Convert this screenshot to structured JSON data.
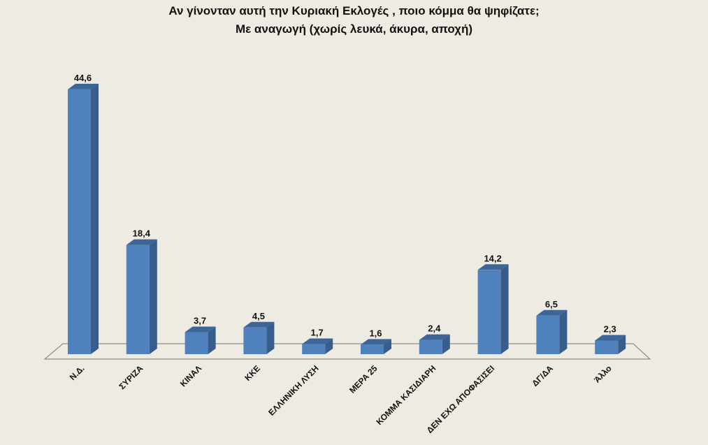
{
  "chart_data": {
    "type": "bar",
    "title": "Αν γίνονταν αυτή την Κυριακή Εκλογές , ποιο κόμμα θα ψηφίζατε;",
    "subtitle": "Με αναγωγή (χωρίς λευκά, άκυρα, αποχή)",
    "xlabel": "",
    "ylabel": "",
    "categories": [
      "Ν.Δ.",
      "ΣΥΡΙΖΑ",
      "ΚΙΝΑΛ",
      "ΚΚΕ",
      "ΕΛΛΗΝΙΚΗ ΛΥΣΗ",
      "ΜΕΡΑ 25",
      "ΚΟΜΜΑ ΚΑΣΙΔΙΑΡΗ",
      "ΔΕΝ ΕΧΩ ΑΠΟΦΑΣΙΣΕΙ",
      "ΔΓ/ΔΑ",
      "Άλλο"
    ],
    "values": [
      44.6,
      18.4,
      3.7,
      4.5,
      1.7,
      1.6,
      2.4,
      14.2,
      6.5,
      2.3
    ],
    "value_labels": [
      "44,6",
      "18,4",
      "3,7",
      "4,5",
      "1,7",
      "1,6",
      "2,4",
      "14,2",
      "6,5",
      "2,3"
    ],
    "ylim": [
      0,
      50
    ],
    "grid": false,
    "legend": "none",
    "style": "3d-column"
  },
  "colors": {
    "background": "#eeebe2",
    "bar_front": "#4f81bd",
    "bar_side": "#385d8a",
    "bar_top": "#3d6596",
    "floor_line": "#8c8c8c"
  }
}
